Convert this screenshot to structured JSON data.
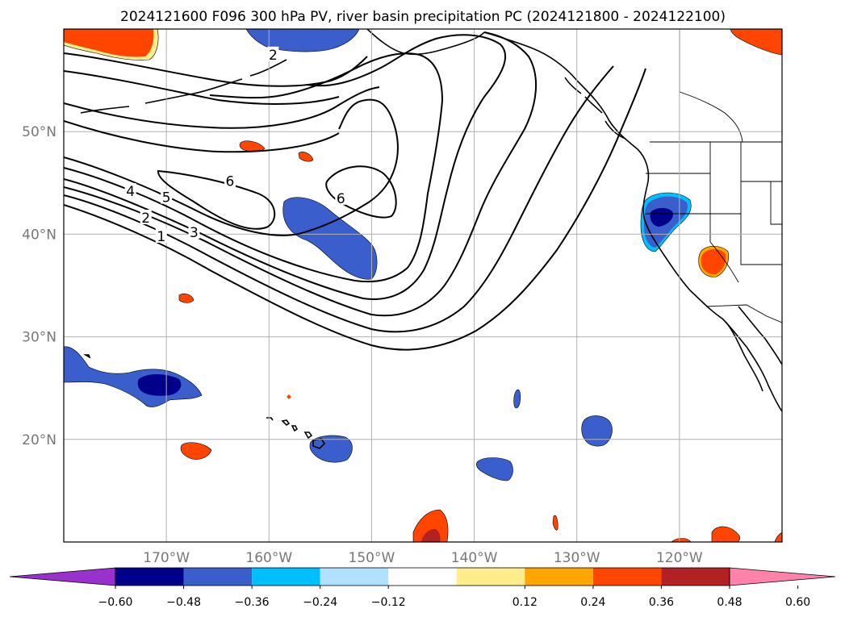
{
  "title": "2024121600 F096 300 hPa PV, river basin precipitation PC (2024121800 - 2024122100)",
  "map": {
    "lon_range": [
      -180,
      -110
    ],
    "lat_range": [
      10,
      60
    ],
    "lon_ticks": [
      {
        "value": -170,
        "label": "170°W"
      },
      {
        "value": -160,
        "label": "160°W"
      },
      {
        "value": -150,
        "label": "150°W"
      },
      {
        "value": -140,
        "label": "140°W"
      },
      {
        "value": -130,
        "label": "130°W"
      },
      {
        "value": -120,
        "label": "120°W"
      }
    ],
    "lat_ticks": [
      {
        "value": 20,
        "label": "20°N"
      },
      {
        "value": 30,
        "label": "30°N"
      },
      {
        "value": 40,
        "label": "40°N"
      },
      {
        "value": 50,
        "label": "50°N"
      }
    ],
    "grid": true
  },
  "pv_contour_labels": [
    {
      "text": "1",
      "lon": -170.5,
      "lat": 39.8
    },
    {
      "text": "2",
      "lon": -172.0,
      "lat": 41.6
    },
    {
      "text": "3",
      "lon": -167.3,
      "lat": 40.2
    },
    {
      "text": "4",
      "lon": -173.5,
      "lat": 44.2
    },
    {
      "text": "5",
      "lon": -170.0,
      "lat": 43.6
    },
    {
      "text": "6",
      "lon": -163.8,
      "lat": 45.2
    },
    {
      "text": "6",
      "lon": -153.0,
      "lat": 43.5
    },
    {
      "text": "2",
      "lon": -159.6,
      "lat": 57.5
    }
  ],
  "colorbar": {
    "ticks": [
      "−0.60",
      "−0.48",
      "−0.36",
      "−0.24",
      "−0.12",
      "0.12",
      "0.24",
      "0.36",
      "0.48",
      "0.60"
    ],
    "colors": [
      "#9932cc",
      "#00008b",
      "#3a5fcd",
      "#00bfff",
      "#b0e2ff",
      "#ffffff",
      "#ffec8b",
      "#ffa500",
      "#ff4500",
      "#b22222",
      "#ff82ab"
    ]
  }
}
